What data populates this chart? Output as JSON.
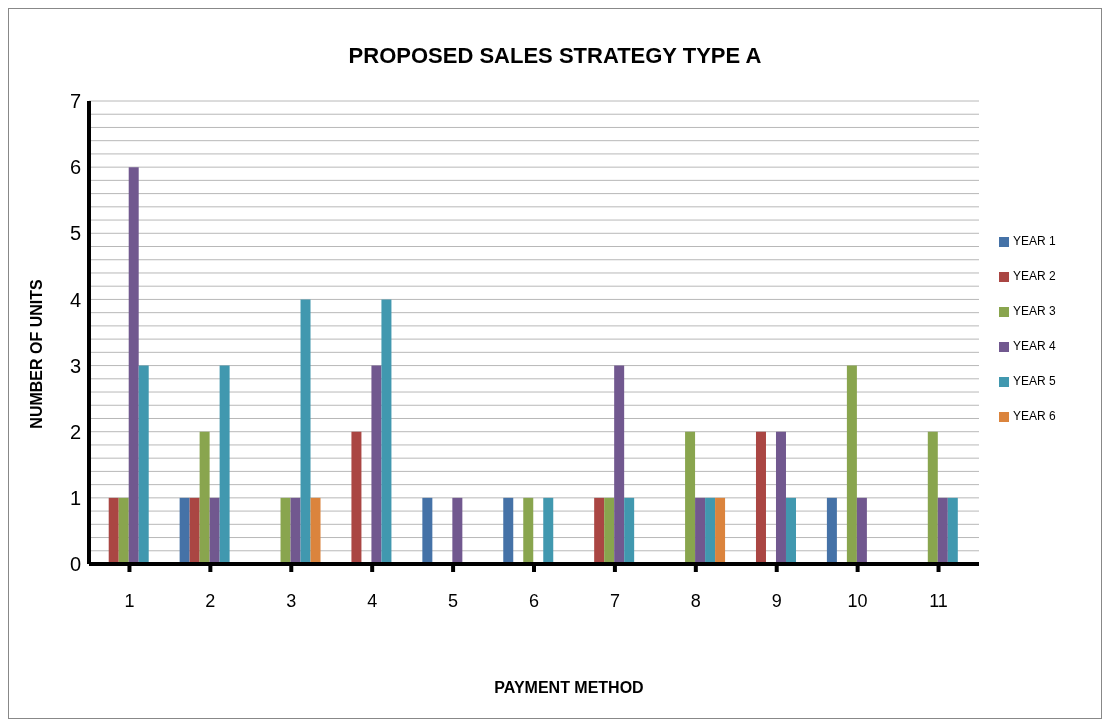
{
  "chart_data": {
    "type": "bar",
    "title": "PROPOSED SALES STRATEGY TYPE A",
    "xlabel": "PAYMENT METHOD",
    "ylabel": "NUMBER OF UNITS",
    "categories": [
      "1",
      "2",
      "3",
      "4",
      "5",
      "6",
      "7",
      "8",
      "9",
      "10",
      "11"
    ],
    "series": [
      {
        "name": "YEAR 1",
        "color": "#4572a7",
        "values": [
          0,
          1,
          0,
          0,
          1,
          1,
          0,
          0,
          0,
          1,
          0
        ]
      },
      {
        "name": "YEAR 2",
        "color": "#aa4643",
        "values": [
          1,
          1,
          0,
          2,
          0,
          0,
          1,
          0,
          2,
          0,
          0
        ]
      },
      {
        "name": "YEAR 3",
        "color": "#89a54e",
        "values": [
          1,
          2,
          1,
          0,
          0,
          1,
          1,
          2,
          0,
          3,
          2
        ]
      },
      {
        "name": "YEAR 4",
        "color": "#71588f",
        "values": [
          6,
          1,
          1,
          3,
          1,
          0,
          3,
          1,
          2,
          1,
          1
        ]
      },
      {
        "name": "YEAR 5",
        "color": "#4198af",
        "values": [
          3,
          3,
          4,
          4,
          0,
          1,
          1,
          1,
          1,
          0,
          1
        ]
      },
      {
        "name": "YEAR 6",
        "color": "#db843d",
        "values": [
          0,
          0,
          1,
          0,
          0,
          0,
          0,
          1,
          0,
          0,
          0
        ]
      }
    ],
    "ylim": [
      0,
      7
    ],
    "yticks": [
      0,
      {
        "value": 0.2,
        "label": null
      },
      {
        "value": 0.4,
        "label": null
      },
      {
        "value": 0.6,
        "label": null
      },
      {
        "value": 0.8,
        "label": null
      },
      1,
      {
        "value": 1.2,
        "label": null
      },
      {
        "value": 1.4,
        "label": null
      },
      {
        "value": 1.6,
        "label": null
      },
      {
        "value": 1.8,
        "label": null
      },
      2,
      {
        "value": 2.2,
        "label": null
      },
      {
        "value": 2.4,
        "label": null
      },
      {
        "value": 2.6,
        "label": null
      },
      {
        "value": 2.8,
        "label": null
      },
      3,
      {
        "value": 3.2,
        "label": null
      },
      {
        "value": 3.4,
        "label": null
      },
      {
        "value": 3.6,
        "label": null
      },
      {
        "value": 3.8,
        "label": null
      },
      4,
      {
        "value": 4.2,
        "label": null
      },
      {
        "value": 4.4,
        "label": null
      },
      {
        "value": 4.6,
        "label": null
      },
      {
        "value": 4.8,
        "label": null
      },
      5,
      {
        "value": 5.2,
        "label": null
      },
      {
        "value": 5.4,
        "label": null
      },
      {
        "value": 5.6,
        "label": null
      },
      {
        "value": 5.8,
        "label": null
      },
      6,
      {
        "value": 6.2,
        "label": null
      },
      {
        "value": 6.4,
        "label": null
      },
      {
        "value": 6.6,
        "label": null
      },
      {
        "value": 6.8,
        "label": null
      },
      7
    ],
    "grid": "y",
    "legend": "right"
  }
}
